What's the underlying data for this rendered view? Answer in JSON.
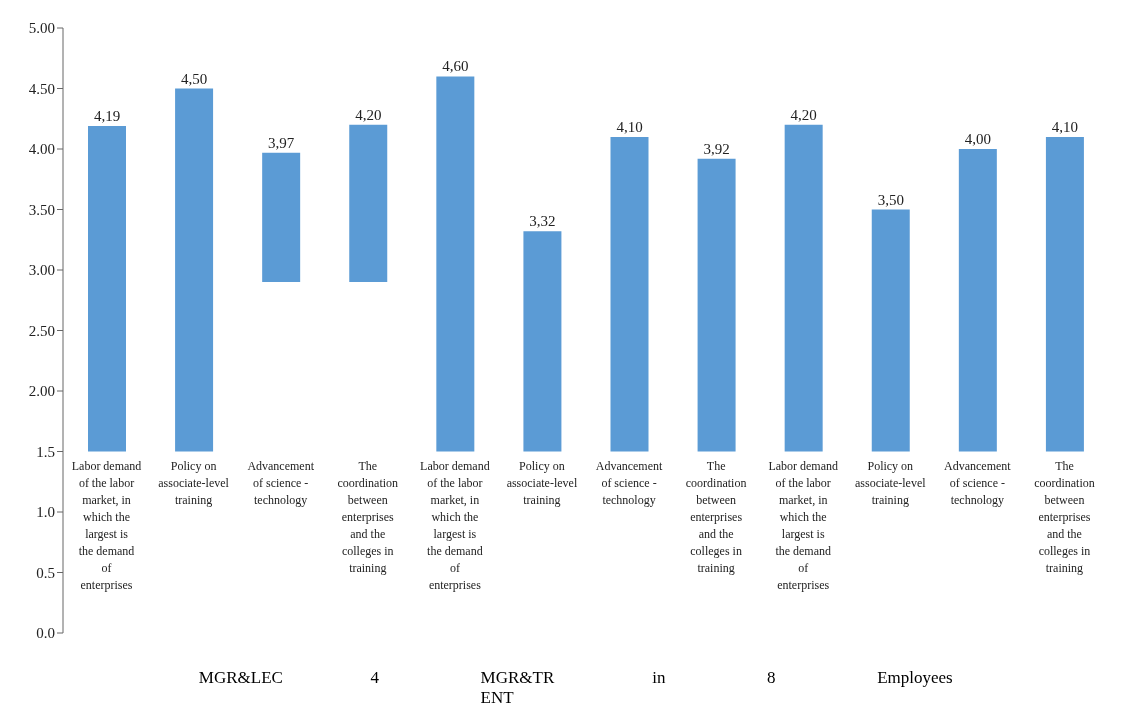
{
  "chart_data": {
    "type": "bar",
    "categories": [
      "Labor demand of the labor market, in which the largest is the demand of enterprises",
      "Policy on associate-level training",
      "Advancement of science - technology",
      "The coordination between enterprises and the colleges in training",
      "Labor demand of the labor market, in which the largest is the demand of enterprises",
      "Policy on associate-level training",
      "Advancement of science - technology",
      "The coordination between enterprises and the colleges in training",
      "Labor demand of the labor market, in which the largest is the demand of enterprises",
      "Policy on associate-level training",
      "Advancement of science - technology",
      "The coordination between enterprises and the colleges in training"
    ],
    "base": [
      1.5,
      1.5,
      2.9,
      2.9,
      1.5,
      1.5,
      1.5,
      1.5,
      1.5,
      1.5,
      1.5,
      1.5
    ],
    "values": [
      2.69,
      3.0,
      1.07,
      1.3,
      3.1,
      1.82,
      2.6,
      2.42,
      2.7,
      2.0,
      2.5,
      2.6
    ],
    "value_labels": [
      "4,19",
      "4,50",
      "3,97",
      "4,20",
      "4,60",
      "3,32",
      "4,10",
      "3,92",
      "4,20",
      "3,50",
      "4,00",
      "4,10"
    ],
    "color": "#5b9bd5",
    "ylim": [
      0,
      5
    ],
    "yticks": [
      {
        "value": 0,
        "label": "0.0"
      },
      {
        "value": 0.5,
        "label": "0.5"
      },
      {
        "value": 1,
        "label": "1.0"
      },
      {
        "value": 1.5,
        "label": "1.5"
      },
      {
        "value": 2,
        "label": "2.00"
      },
      {
        "value": 2.5,
        "label": "2.50"
      },
      {
        "value": 3,
        "label": "3.00"
      },
      {
        "value": 3.5,
        "label": "3.50"
      },
      {
        "value": 4,
        "label": "4.00"
      },
      {
        "value": 4.5,
        "label": "4.50"
      },
      {
        "value": 5,
        "label": "5.00"
      }
    ],
    "annotations": [
      "MGR&LEC",
      "4",
      "MGR&TR ENT",
      "in",
      "8",
      "Employees"
    ]
  }
}
